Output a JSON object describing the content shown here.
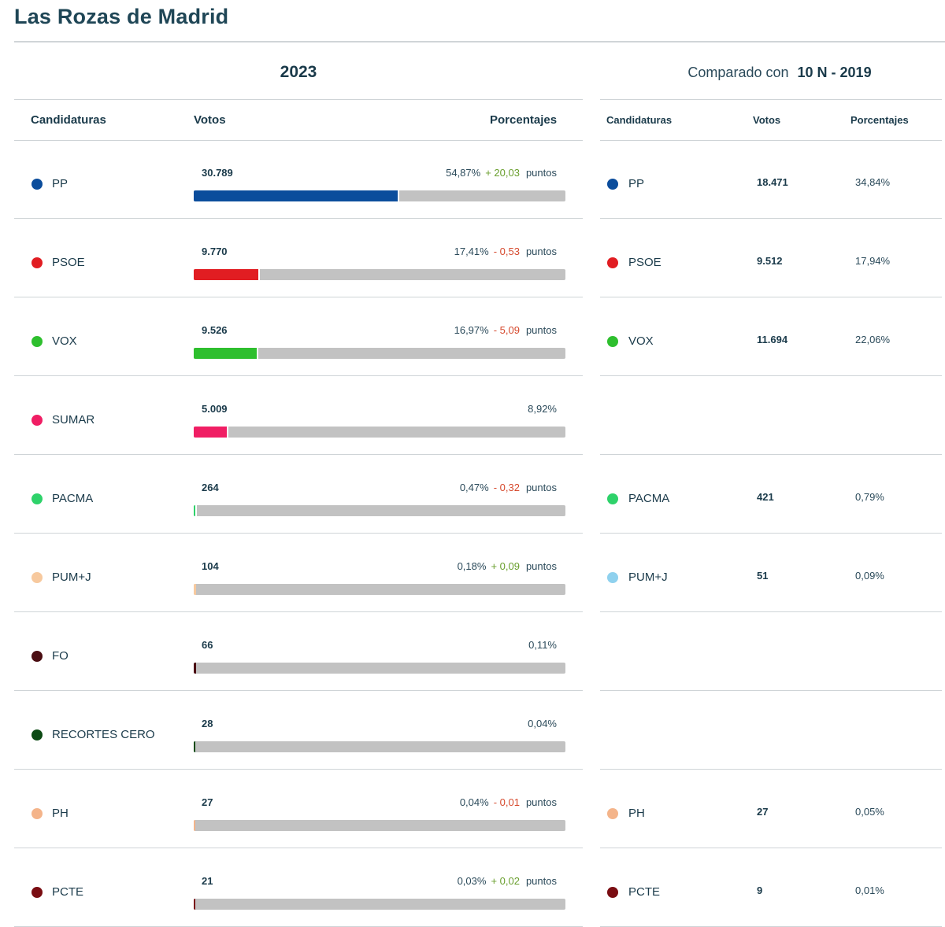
{
  "title": "Las Rozas de Madrid",
  "main": {
    "year": "2023"
  },
  "compare": {
    "prefix": "Comparado con",
    "election": "10 N - 2019"
  },
  "headers": {
    "candidaturas": "Candidaturas",
    "votos": "Votos",
    "porcentajes": "Porcentajes"
  },
  "points_label": "puntos",
  "rows": [
    {
      "party": "PP",
      "color": "#0b4d9c",
      "votes": "30.789",
      "pct": "54,87%",
      "pct_value": 54.87,
      "change": "+ 20,03",
      "change_sign": "pos",
      "has_change": true,
      "prev": {
        "party": "PP",
        "color": "#0b4d9c",
        "votes": "18.471",
        "pct": "34,84%"
      }
    },
    {
      "party": "PSOE",
      "color": "#e11d22",
      "votes": "9.770",
      "pct": "17,41%",
      "pct_value": 17.41,
      "change": "- 0,53",
      "change_sign": "neg",
      "has_change": true,
      "prev": {
        "party": "PSOE",
        "color": "#e11d22",
        "votes": "9.512",
        "pct": "17,94%"
      }
    },
    {
      "party": "VOX",
      "color": "#2ebf2e",
      "votes": "9.526",
      "pct": "16,97%",
      "pct_value": 16.97,
      "change": "- 5,09",
      "change_sign": "neg",
      "has_change": true,
      "prev": {
        "party": "VOX",
        "color": "#2ebf2e",
        "votes": "11.694",
        "pct": "22,06%"
      }
    },
    {
      "party": "SUMAR",
      "color": "#f01e64",
      "votes": "5.009",
      "pct": "8,92%",
      "pct_value": 8.92,
      "change": "",
      "change_sign": "",
      "has_change": false,
      "prev": null
    },
    {
      "party": "PACMA",
      "color": "#2ed26a",
      "votes": "264",
      "pct": "0,47%",
      "pct_value": 0.47,
      "change": "- 0,32",
      "change_sign": "neg",
      "has_change": true,
      "prev": {
        "party": "PACMA",
        "color": "#2ed26a",
        "votes": "421",
        "pct": "0,79%"
      }
    },
    {
      "party": "PUM+J",
      "color": "#f7c99e",
      "votes": "104",
      "pct": "0,18%",
      "pct_value": 0.18,
      "change": "+ 0,09",
      "change_sign": "pos",
      "has_change": true,
      "prev": {
        "party": "PUM+J",
        "color": "#8fd1ee",
        "votes": "51",
        "pct": "0,09%"
      }
    },
    {
      "party": "FO",
      "color": "#4a0d12",
      "votes": "66",
      "pct": "0,11%",
      "pct_value": 0.11,
      "change": "",
      "change_sign": "",
      "has_change": false,
      "prev": null
    },
    {
      "party": "RECORTES CERO",
      "color": "#0c4a14",
      "votes": "28",
      "pct": "0,04%",
      "pct_value": 0.04,
      "change": "",
      "change_sign": "",
      "has_change": false,
      "prev": null
    },
    {
      "party": "PH",
      "color": "#f4b48a",
      "votes": "27",
      "pct": "0,04%",
      "pct_value": 0.04,
      "change": "- 0,01",
      "change_sign": "neg",
      "has_change": true,
      "prev": {
        "party": "PH",
        "color": "#f4b48a",
        "votes": "27",
        "pct": "0,05%"
      }
    },
    {
      "party": "PCTE",
      "color": "#7a0d12",
      "votes": "21",
      "pct": "0,03%",
      "pct_value": 0.03,
      "change": "+ 0,02",
      "change_sign": "pos",
      "has_change": true,
      "prev": {
        "party": "PCTE",
        "color": "#7a0d12",
        "votes": "9",
        "pct": "0,01%"
      }
    }
  ],
  "chart_data": {
    "type": "bar",
    "categories": [
      "PP",
      "PSOE",
      "VOX",
      "SUMAR",
      "PACMA",
      "PUM+J",
      "FO",
      "RECORTES CERO",
      "PH",
      "PCTE"
    ],
    "series": [
      {
        "name": "2023",
        "values": [
          54.87,
          17.41,
          16.97,
          8.92,
          0.47,
          0.18,
          0.11,
          0.04,
          0.04,
          0.03
        ]
      },
      {
        "name": "10 N - 2019",
        "values": [
          34.84,
          17.94,
          22.06,
          null,
          0.79,
          0.09,
          null,
          null,
          0.05,
          0.01
        ]
      }
    ],
    "ylim": [
      0,
      100
    ]
  }
}
